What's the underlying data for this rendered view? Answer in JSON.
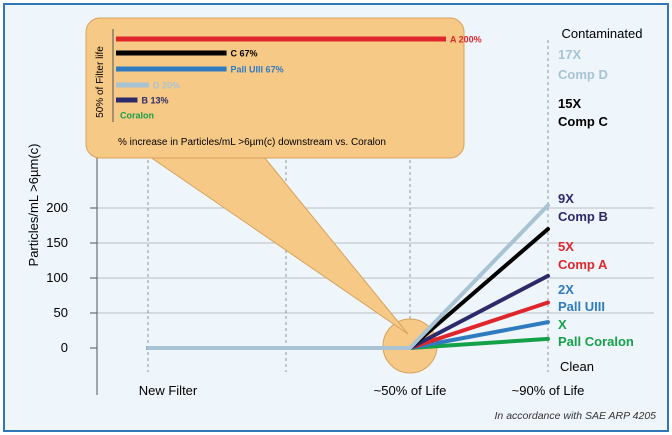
{
  "chart_data": {
    "type": "line",
    "ylabel": "Particles/mL  >6µm(c)",
    "ylim": [
      0,
      220
    ],
    "yticks": [
      0,
      50,
      100,
      150,
      200
    ],
    "x_categories": [
      "New Filter",
      "~50% of Life",
      "~90% of Life"
    ],
    "top_label": "Contaminated",
    "bottom_label": "Clean",
    "series": [
      {
        "name": "Comp D",
        "factor": "17X",
        "color": "#a8c3d4",
        "values": [
          0,
          0,
          204
        ]
      },
      {
        "name": "Comp C",
        "factor": "15X",
        "color": "#000000",
        "values": [
          0,
          0,
          170
        ]
      },
      {
        "name": "Comp B",
        "factor": "9X",
        "color": "#2b2a6b",
        "values": [
          0,
          0,
          103
        ]
      },
      {
        "name": "Comp A",
        "factor": "5X",
        "color": "#e0262d",
        "values": [
          0,
          0,
          65
        ]
      },
      {
        "name": "Pall UIII",
        "factor": "2X",
        "color": "#2f7bbf",
        "values": [
          0,
          0,
          37
        ]
      },
      {
        "name": "Pall Coralon",
        "factor": "X",
        "color": "#15a04a",
        "values": [
          0,
          0,
          13
        ]
      }
    ],
    "footnote": "In accordance with SAE ARP 4205",
    "inset": {
      "type": "bar",
      "ylabel": "50% of Filter life",
      "xlabel": "% increase in Particles/mL  >6µm(c) downstream vs. Coralon",
      "xmax": 200,
      "bars": [
        {
          "name": "A",
          "value": 200,
          "label": "A 200%",
          "color": "#e0262d"
        },
        {
          "name": "C",
          "value": 67,
          "label": "C 67%",
          "color": "#000000"
        },
        {
          "name": "Pall UIII",
          "value": 67,
          "label": "Pall UIII 67%",
          "color": "#2f7bbf"
        },
        {
          "name": "D",
          "value": 20,
          "label": "D 20%",
          "color": "#a8c3d4"
        },
        {
          "name": "B",
          "value": 13,
          "label": "B 13%",
          "color": "#2b2a6b"
        },
        {
          "name": "Coralon",
          "value": 0,
          "label": "Coralon",
          "color": "#15a04a"
        }
      ]
    }
  }
}
